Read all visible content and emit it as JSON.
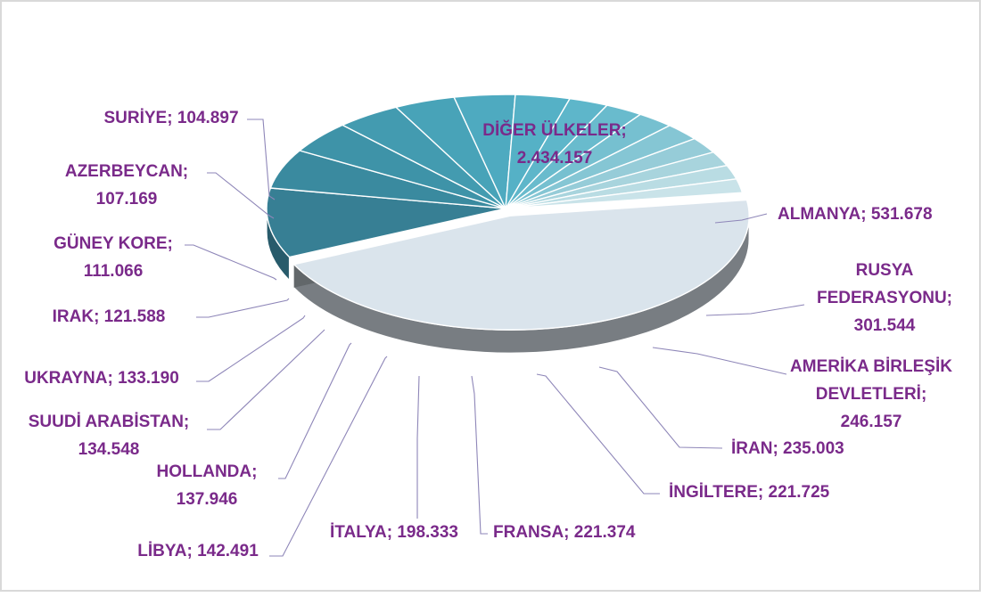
{
  "chart_data": {
    "type": "pie",
    "title": "",
    "style": "3d-exploded",
    "slices": [
      {
        "category": "DİĞER ÜLKELER",
        "value": 2434157,
        "display": "2.434.157",
        "color": "#dae4ec",
        "label_lines": [
          "DİĞER ÜLKELER;",
          "2.434.157"
        ]
      },
      {
        "category": "ALMANYA",
        "value": 531678,
        "display": "531.678",
        "color": "#377f94",
        "label_lines": [
          "ALMANYA; 531.678"
        ]
      },
      {
        "category": "RUSYA FEDERASYONU",
        "value": 301544,
        "display": "301.544",
        "color": "#3a8a9f",
        "label_lines": [
          "RUSYA",
          "FEDERASYONU;",
          "301.544"
        ]
      },
      {
        "category": "AMERİKA BİRLEŞİK DEVLETLERİ",
        "value": 246157,
        "display": "246.157",
        "color": "#3e93a8",
        "label_lines": [
          "AMERİKA BİRLEŞİK",
          "DEVLETLERİ;",
          "246.157"
        ]
      },
      {
        "category": "İRAN",
        "value": 235003,
        "display": "235.003",
        "color": "#439bb0",
        "label_lines": [
          "İRAN; 235.003"
        ]
      },
      {
        "category": "İNGİLTERE",
        "value": 221725,
        "display": "221.725",
        "color": "#48a3b8",
        "label_lines": [
          "İNGİLTERE; 221.725"
        ]
      },
      {
        "category": "FRANSA",
        "value": 221374,
        "display": "221.374",
        "color": "#4eaac0",
        "label_lines": [
          "FRANSA; 221.374"
        ]
      },
      {
        "category": "İTALYA",
        "value": 198333,
        "display": "198.333",
        "color": "#55b1c6",
        "label_lines": [
          "İTALYA; 198.333"
        ]
      },
      {
        "category": "LİBYA",
        "value": 142491,
        "display": "142.491",
        "color": "#5eb6ca",
        "label_lines": [
          "LİBYA; 142.491"
        ]
      },
      {
        "category": "HOLLANDA",
        "value": 137946,
        "display": "137.946",
        "color": "#69bbcd",
        "label_lines": [
          "HOLLANDA;",
          "137.946"
        ]
      },
      {
        "category": "SUUDİ ARABİSTAN",
        "value": 134548,
        "display": "134.548",
        "color": "#76c0d0",
        "label_lines": [
          "SUUDİ ARABİSTAN;",
          "134.548"
        ]
      },
      {
        "category": "UKRAYNA",
        "value": 133190,
        "display": "133.190",
        "color": "#85c6d4",
        "label_lines": [
          "UKRAYNA; 133.190"
        ]
      },
      {
        "category": "IRAK",
        "value": 121588,
        "display": "121.588",
        "color": "#96ccd8",
        "label_lines": [
          "IRAK; 121.588"
        ]
      },
      {
        "category": "GÜNEY KORE",
        "value": 111066,
        "display": "111.066",
        "color": "#a8d4dd",
        "label_lines": [
          "GÜNEY KORE;",
          "111.066"
        ]
      },
      {
        "category": "AZERBEYCAN",
        "value": 107169,
        "display": "107.169",
        "color": "#b9dce3",
        "label_lines": [
          "AZERBEYCAN;",
          "107.169"
        ]
      },
      {
        "category": "SURİYE",
        "value": 104897,
        "display": "104.897",
        "color": "#c9e3e9",
        "label_lines": [
          "SURİYE; 104.897"
        ]
      }
    ]
  }
}
